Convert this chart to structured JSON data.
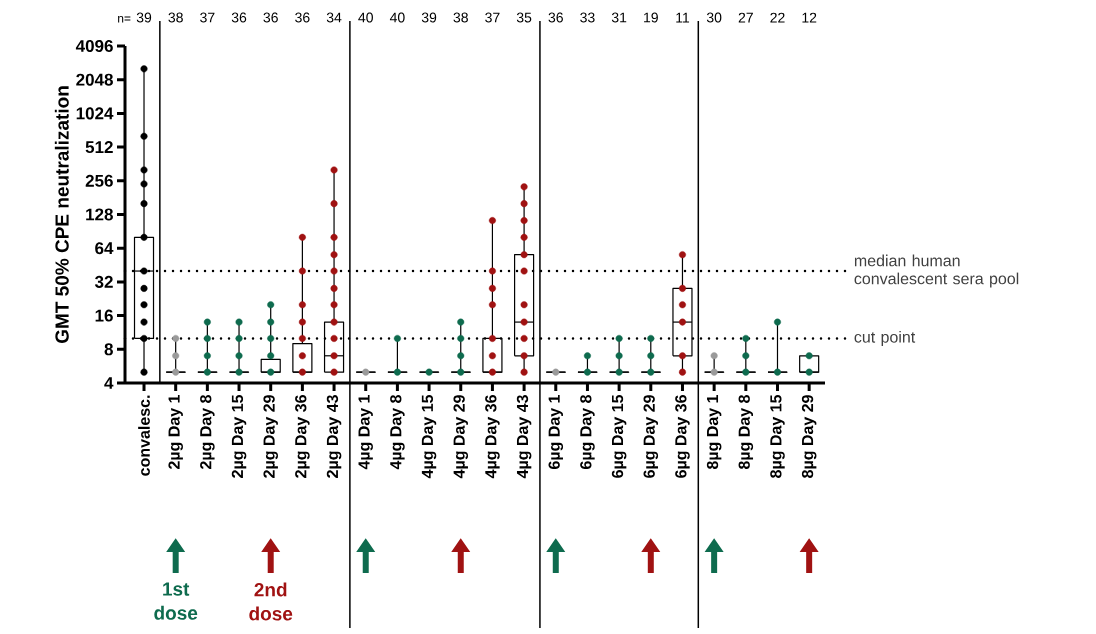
{
  "chart_data": {
    "type": "box",
    "ylabel": "GMT 50% CPE neutralization",
    "categories": [
      "convalesc.",
      "2µg Day 1",
      "2µg Day 8",
      "2µg Day 15",
      "2µg Day 29",
      "2µg Day 36",
      "2µg Day 43",
      "4µg Day 1",
      "4µg Day 8",
      "4µg Day 15",
      "4µg Day 29",
      "4µg Day 36",
      "4µg Day 43",
      "6µg Day 1",
      "6µg Day 8",
      "6µg Day 15",
      "6µg Day 29",
      "6µg Day 36",
      "8µg Day 1",
      "8µg Day 8",
      "8µg Day 15",
      "8µg Day 29"
    ],
    "boxes": [
      {
        "low": 5,
        "q1": 10,
        "median": 40,
        "q3": 80,
        "high": 2560
      },
      {
        "low": 5,
        "q1": 5,
        "median": 5,
        "q3": 5,
        "high": 10
      },
      {
        "low": 5,
        "q1": 5,
        "median": 5,
        "q3": 5,
        "high": 14
      },
      {
        "low": 5,
        "q1": 5,
        "median": 5,
        "q3": 5,
        "high": 14
      },
      {
        "low": 5,
        "q1": 5,
        "median": 5,
        "q3": 6.5,
        "high": 20
      },
      {
        "low": 5,
        "q1": 5,
        "median": 5,
        "q3": 9,
        "high": 80
      },
      {
        "low": 5,
        "q1": 5,
        "median": 7,
        "q3": 14,
        "high": 320
      },
      {
        "low": 5,
        "q1": 5,
        "median": 5,
        "q3": 5,
        "high": 5
      },
      {
        "low": 5,
        "q1": 5,
        "median": 5,
        "q3": 5,
        "high": 10
      },
      {
        "low": 5,
        "q1": 5,
        "median": 5,
        "q3": 5,
        "high": 5
      },
      {
        "low": 5,
        "q1": 5,
        "median": 5,
        "q3": 5,
        "high": 14
      },
      {
        "low": 5,
        "q1": 5,
        "median": 5,
        "q3": 10,
        "high": 113
      },
      {
        "low": 5,
        "q1": 7,
        "median": 14,
        "q3": 56,
        "high": 226
      },
      {
        "low": 5,
        "q1": 5,
        "median": 5,
        "q3": 5,
        "high": 5
      },
      {
        "low": 5,
        "q1": 5,
        "median": 5,
        "q3": 5,
        "high": 7
      },
      {
        "low": 5,
        "q1": 5,
        "median": 5,
        "q3": 5,
        "high": 10
      },
      {
        "low": 5,
        "q1": 5,
        "median": 5,
        "q3": 5,
        "high": 10
      },
      {
        "low": 5,
        "q1": 7,
        "median": 14,
        "q3": 28,
        "high": 56
      },
      {
        "low": 5,
        "q1": 5,
        "median": 5,
        "q3": 5,
        "high": 7
      },
      {
        "low": 5,
        "q1": 5,
        "median": 5,
        "q3": 5,
        "high": 10
      },
      {
        "low": 5,
        "q1": 5,
        "median": 5,
        "q3": 5,
        "high": 14
      },
      {
        "low": 5,
        "q1": 5,
        "median": 5,
        "q3": 7,
        "high": 7
      }
    ],
    "series": [
      {
        "type": "scatter",
        "color": "#000000",
        "x": [
          "convalesc.",
          "convalesc.",
          "convalesc.",
          "convalesc.",
          "convalesc.",
          "convalesc.",
          "convalesc.",
          "convalesc.",
          "convalesc.",
          "convalesc.",
          "convalesc.",
          "convalesc."
        ],
        "values": [
          5,
          10,
          14,
          20,
          28,
          40,
          80,
          160,
          240,
          320,
          640,
          2560
        ]
      },
      {
        "type": "scatter",
        "color": "#9a9a9a",
        "x": [
          "2µg Day 1",
          "2µg Day 1",
          "2µg Day 1",
          "4µg Day 1",
          "6µg Day 1",
          "8µg Day 1",
          "8µg Day 1"
        ],
        "values": [
          5,
          7,
          10,
          5,
          5,
          5,
          7
        ]
      },
      {
        "type": "scatter",
        "color": "#0e6b4e",
        "x": [
          "2µg Day 8",
          "2µg Day 8",
          "2µg Day 8",
          "2µg Day 8",
          "2µg Day 15",
          "2µg Day 15",
          "2µg Day 15",
          "2µg Day 15",
          "2µg Day 29",
          "2µg Day 29",
          "2µg Day 29",
          "2µg Day 29",
          "2µg Day 29",
          "4µg Day 8",
          "4µg Day 8",
          "4µg Day 15",
          "4µg Day 29",
          "4µg Day 29",
          "4µg Day 29",
          "4µg Day 29",
          "6µg Day 8",
          "6µg Day 8",
          "6µg Day 15",
          "6µg Day 15",
          "6µg Day 15",
          "6µg Day 29",
          "6µg Day 29",
          "6µg Day 29",
          "8µg Day 8",
          "8µg Day 8",
          "8µg Day 8",
          "8µg Day 15",
          "8µg Day 15",
          "8µg Day 29",
          "8µg Day 29"
        ],
        "values": [
          5,
          7,
          10,
          14,
          5,
          7,
          10,
          14,
          5,
          7,
          10,
          14,
          20,
          5,
          10,
          5,
          5,
          7,
          10,
          14,
          5,
          7,
          5,
          7,
          10,
          5,
          7,
          10,
          5,
          7,
          10,
          5,
          14,
          5,
          7
        ]
      },
      {
        "type": "scatter",
        "color": "#a01212",
        "x": [
          "2µg Day 36",
          "2µg Day 36",
          "2µg Day 36",
          "2µg Day 36",
          "2µg Day 36",
          "2µg Day 36",
          "2µg Day 36",
          "2µg Day 43",
          "2µg Day 43",
          "2µg Day 43",
          "2µg Day 43",
          "2µg Day 43",
          "2µg Day 43",
          "2µg Day 43",
          "2µg Day 43",
          "2µg Day 43",
          "2µg Day 43",
          "2µg Day 43",
          "4µg Day 36",
          "4µg Day 36",
          "4µg Day 36",
          "4µg Day 36",
          "4µg Day 36",
          "4µg Day 36",
          "4µg Day 36",
          "4µg Day 43",
          "4µg Day 43",
          "4µg Day 43",
          "4µg Day 43",
          "4µg Day 43",
          "4µg Day 43",
          "4µg Day 43",
          "4µg Day 43",
          "4µg Day 43",
          "4µg Day 43",
          "4µg Day 43",
          "6µg Day 36",
          "6µg Day 36",
          "6µg Day 36",
          "6µg Day 36",
          "6µg Day 36",
          "6µg Day 36"
        ],
        "values": [
          5,
          7,
          10,
          14,
          20,
          40,
          80,
          5,
          7,
          10,
          14,
          20,
          28,
          40,
          56,
          80,
          160,
          320,
          5,
          7,
          10,
          20,
          28,
          40,
          113,
          5,
          7,
          10,
          14,
          20,
          40,
          56,
          80,
          113,
          160,
          226,
          5,
          7,
          14,
          20,
          28,
          56
        ]
      }
    ],
    "log": "y",
    "ylim": [
      4,
      4096
    ],
    "yticks": [
      4,
      8,
      16,
      32,
      64,
      128,
      256,
      512,
      1024,
      2048,
      4096
    ],
    "grid": false,
    "ref_lines": [
      {
        "axis": "y",
        "value": 40,
        "label": "median human convalescent sera pool",
        "line_style": "dotted",
        "color": "#000000"
      },
      {
        "axis": "y",
        "value": 10,
        "label": "cut point",
        "line_style": "dotted",
        "color": "#000000"
      }
    ],
    "annotations": [
      "n=",
      "39",
      "38",
      "37",
      "36",
      "36",
      "36",
      "34",
      "40",
      "40",
      "39",
      "38",
      "37",
      "35",
      "36",
      "33",
      "31",
      "19",
      "11",
      "30",
      "27",
      "22",
      "12",
      "1st dose",
      "2nd dose"
    ]
  }
}
